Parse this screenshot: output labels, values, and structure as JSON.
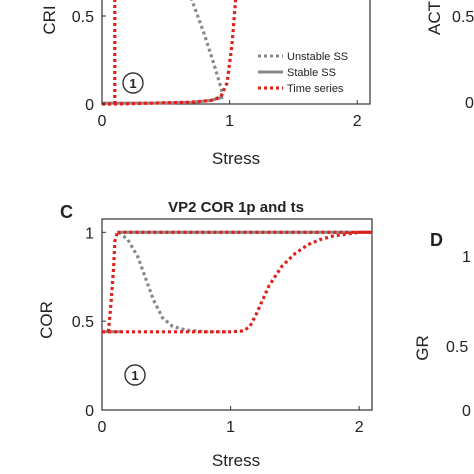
{
  "chart_data": [
    {
      "panel": "",
      "type": "line",
      "title": "",
      "xlabel": "Stress",
      "ylabel": "CRI",
      "xlim": [
        0,
        2.1
      ],
      "ylim": [
        0,
        1
      ],
      "x_ticks": [
        "0",
        "1",
        "2"
      ],
      "y_ticks": [
        "0",
        "0.5"
      ],
      "annotation": "1",
      "legend": {
        "position": "bottom-right",
        "entries": [
          "Unstable SS",
          "Stable SS",
          "Time series"
        ]
      },
      "series": [
        {
          "name": "Unstable SS",
          "style": "dotted",
          "color": "#888888",
          "x": [
            0.5,
            0.6,
            0.7,
            0.8,
            0.88,
            0.95
          ],
          "y": [
            0.95,
            0.78,
            0.6,
            0.4,
            0.22,
            0.05
          ]
        },
        {
          "name": "Stable SS",
          "style": "solid",
          "color": "#888888",
          "x": [
            0.0,
            0.4,
            0.7,
            0.85,
            0.95
          ],
          "y": [
            0.005,
            0.005,
            0.01,
            0.02,
            0.04
          ]
        },
        {
          "name": "Time series",
          "style": "dotted",
          "color": "#e0201b",
          "x": [
            0.0,
            0.05,
            0.08,
            0.1,
            0.1,
            0.4,
            0.7,
            0.85,
            0.93,
            0.98,
            1.02,
            1.05,
            1.07,
            1.1
          ],
          "y": [
            0.0,
            0.0,
            0.0,
            0.0,
            0.0,
            0.005,
            0.01,
            0.02,
            0.04,
            0.12,
            0.35,
            0.62,
            0.85,
            1.0
          ]
        },
        {
          "name": "Time series",
          "style": "dotted",
          "color": "#e0201b",
          "x": [
            0.1,
            0.1,
            0.1
          ],
          "y": [
            0.0,
            0.5,
            1.0
          ]
        }
      ]
    },
    {
      "panel": "",
      "type": "line",
      "title": "",
      "xlabel": "",
      "ylabel": "ACT",
      "y_ticks": [
        "0",
        "0.5"
      ],
      "series": []
    },
    {
      "panel": "C",
      "type": "line",
      "title": "VP2 COR 1p and ts",
      "xlabel": "Stress",
      "ylabel": "COR",
      "xlim": [
        0,
        2.1
      ],
      "ylim": [
        0,
        1.03
      ],
      "x_ticks": [
        "0",
        "1",
        "2"
      ],
      "y_ticks": [
        "0",
        "0.5",
        "1"
      ],
      "annotation": "1",
      "series": [
        {
          "name": "Unstable SS",
          "style": "dotted",
          "color": "#888888",
          "x": [
            0.13,
            0.2,
            0.28,
            0.34,
            0.4,
            0.47,
            0.55,
            0.65,
            0.8,
            1.0
          ],
          "y": [
            1.0,
            0.96,
            0.86,
            0.74,
            0.62,
            0.52,
            0.47,
            0.45,
            0.44,
            0.44
          ]
        },
        {
          "name": "Stable SS",
          "style": "solid",
          "color": "#888888",
          "x": [
            0.0,
            0.15
          ],
          "y": [
            0.44,
            0.44
          ]
        },
        {
          "name": "Stable SS",
          "style": "solid",
          "color": "#888888",
          "x": [
            0.12,
            2.1
          ],
          "y": [
            1.0,
            1.0
          ]
        },
        {
          "name": "Time series",
          "style": "dotted",
          "color": "#e0201b",
          "x": [
            0.0,
            1.0,
            1.1,
            1.15,
            1.2,
            1.3,
            1.4,
            1.5,
            1.6,
            1.7,
            1.8,
            1.9,
            2.0,
            2.1
          ],
          "y": [
            0.44,
            0.44,
            0.445,
            0.47,
            0.54,
            0.7,
            0.81,
            0.88,
            0.93,
            0.96,
            0.98,
            0.99,
            1.0,
            1.0
          ]
        },
        {
          "name": "Time series",
          "style": "dotted",
          "color": "#e0201b",
          "x": [
            0.05,
            0.07,
            0.09,
            0.1,
            0.12
          ],
          "y": [
            0.44,
            0.6,
            0.8,
            0.95,
            1.0
          ]
        },
        {
          "name": "Time series",
          "style": "dotted",
          "color": "#e0201b",
          "x": [
            0.12,
            1.0,
            2.1
          ],
          "y": [
            1.0,
            1.0,
            1.0
          ]
        }
      ]
    },
    {
      "panel": "D",
      "type": "line",
      "title": "",
      "xlabel": "",
      "ylabel": "GR",
      "y_ticks": [
        "0",
        "0.5",
        "1"
      ],
      "series": []
    }
  ]
}
